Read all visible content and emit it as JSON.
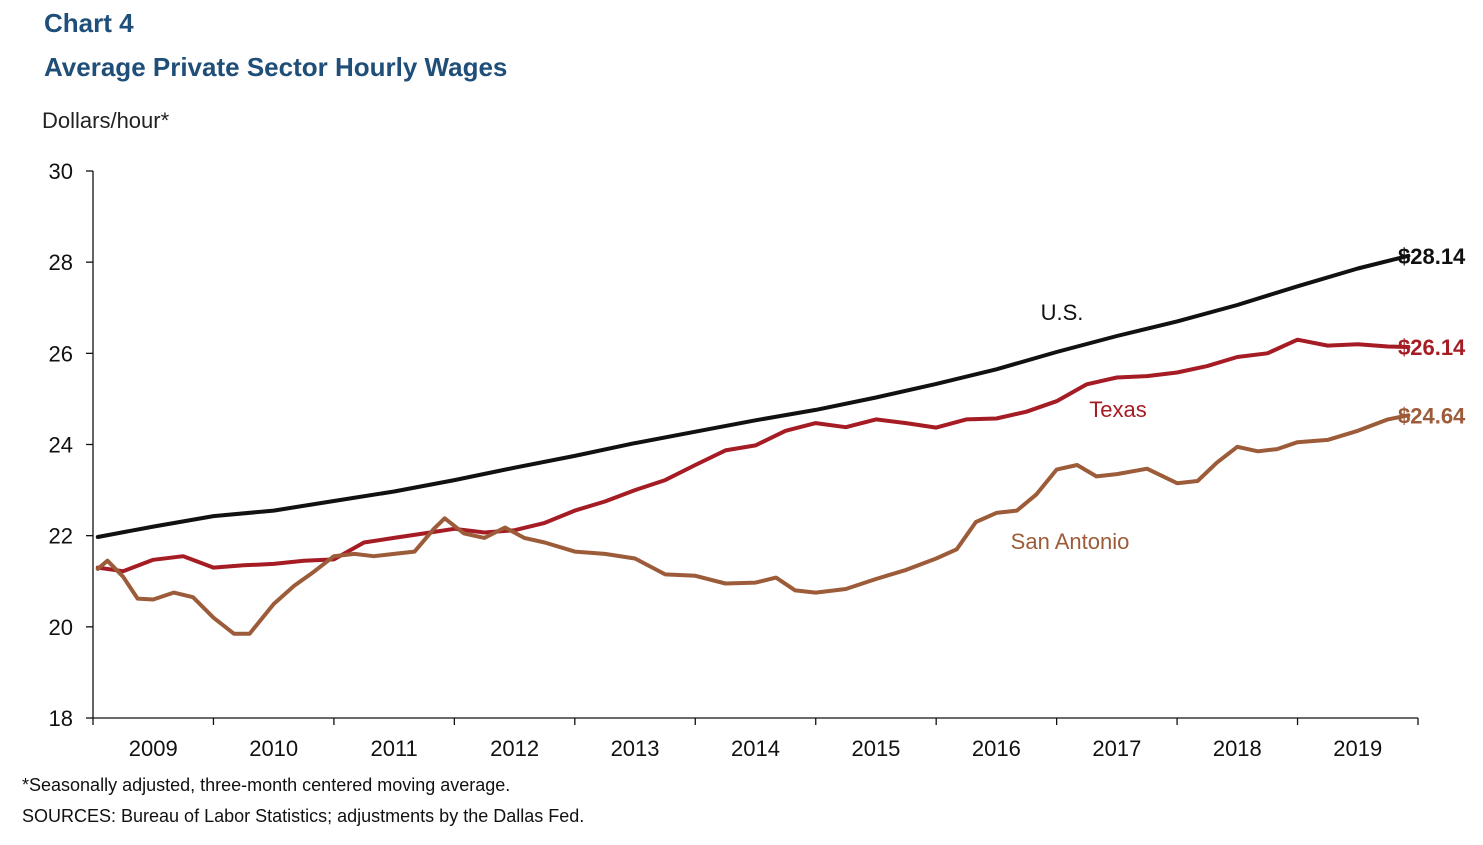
{
  "header": {
    "chart_label": "Chart 4",
    "title": "Average Private Sector Hourly Wages"
  },
  "footnotes": {
    "note": "*Seasonally adjusted, three-month centered moving average.",
    "sources": "SOURCES: Bureau of Labor Statistics; adjustments by the Dallas Fed."
  },
  "chart_data": {
    "type": "line",
    "title": "Average Private Sector Hourly Wages",
    "ylabel": "Dollars/hour*",
    "xlabel": "",
    "ylim": [
      18,
      30
    ],
    "yticks": [
      18,
      20,
      22,
      24,
      26,
      28,
      30
    ],
    "ytick_labels": [
      "18",
      "20",
      "22",
      "24",
      "26",
      "28",
      "30"
    ],
    "xlim": [
      2008.5,
      2019.5
    ],
    "xticks": [
      2009,
      2010,
      2011,
      2012,
      2013,
      2014,
      2015,
      2016,
      2017,
      2018,
      2019
    ],
    "xtick_labels": [
      "2009",
      "2010",
      "2011",
      "2012",
      "2013",
      "2014",
      "2015",
      "2016",
      "2017",
      "2018",
      "2019"
    ],
    "grid": false,
    "series": [
      {
        "name": "U.S.",
        "color": "#111111",
        "end_label": "$28.14",
        "end_label_color": "#111111",
        "points": [
          [
            2008.54,
            21.97
          ],
          [
            2009.0,
            22.2
          ],
          [
            2009.5,
            22.43
          ],
          [
            2010.0,
            22.55
          ],
          [
            2010.5,
            22.76
          ],
          [
            2011.0,
            22.97
          ],
          [
            2011.5,
            23.22
          ],
          [
            2012.0,
            23.49
          ],
          [
            2012.5,
            23.75
          ],
          [
            2013.0,
            24.03
          ],
          [
            2013.5,
            24.28
          ],
          [
            2014.0,
            24.53
          ],
          [
            2014.5,
            24.76
          ],
          [
            2015.0,
            25.03
          ],
          [
            2015.5,
            25.33
          ],
          [
            2016.0,
            25.65
          ],
          [
            2016.5,
            26.03
          ],
          [
            2017.0,
            26.38
          ],
          [
            2017.5,
            26.7
          ],
          [
            2018.0,
            27.06
          ],
          [
            2018.5,
            27.47
          ],
          [
            2019.0,
            27.86
          ],
          [
            2019.42,
            28.14
          ]
        ]
      },
      {
        "name": "Texas",
        "color": "#a51c24",
        "end_label": "$26.14",
        "end_label_color": "#a51c24",
        "points": [
          [
            2008.54,
            21.3
          ],
          [
            2008.75,
            21.22
          ],
          [
            2009.0,
            21.47
          ],
          [
            2009.25,
            21.55
          ],
          [
            2009.5,
            21.3
          ],
          [
            2009.75,
            21.35
          ],
          [
            2010.0,
            21.38
          ],
          [
            2010.25,
            21.45
          ],
          [
            2010.5,
            21.48
          ],
          [
            2010.75,
            21.85
          ],
          [
            2011.0,
            21.95
          ],
          [
            2011.25,
            22.05
          ],
          [
            2011.5,
            22.15
          ],
          [
            2011.75,
            22.07
          ],
          [
            2012.0,
            22.12
          ],
          [
            2012.25,
            22.28
          ],
          [
            2012.5,
            22.55
          ],
          [
            2012.75,
            22.75
          ],
          [
            2013.0,
            23.0
          ],
          [
            2013.25,
            23.22
          ],
          [
            2013.5,
            23.55
          ],
          [
            2013.75,
            23.87
          ],
          [
            2014.0,
            23.98
          ],
          [
            2014.25,
            24.3
          ],
          [
            2014.5,
            24.47
          ],
          [
            2014.75,
            24.38
          ],
          [
            2015.0,
            24.55
          ],
          [
            2015.25,
            24.47
          ],
          [
            2015.5,
            24.37
          ],
          [
            2015.75,
            24.55
          ],
          [
            2016.0,
            24.57
          ],
          [
            2016.25,
            24.72
          ],
          [
            2016.5,
            24.95
          ],
          [
            2016.75,
            25.32
          ],
          [
            2017.0,
            25.47
          ],
          [
            2017.25,
            25.5
          ],
          [
            2017.5,
            25.58
          ],
          [
            2017.75,
            25.72
          ],
          [
            2018.0,
            25.92
          ],
          [
            2018.25,
            26.0
          ],
          [
            2018.5,
            26.3
          ],
          [
            2018.75,
            26.17
          ],
          [
            2019.0,
            26.2
          ],
          [
            2019.25,
            26.15
          ],
          [
            2019.42,
            26.14
          ]
        ]
      },
      {
        "name": "San Antonio",
        "color": "#9c5b39",
        "end_label": "$24.64",
        "end_label_color": "#9c5b39",
        "points": [
          [
            2008.54,
            21.27
          ],
          [
            2008.62,
            21.45
          ],
          [
            2008.75,
            21.1
          ],
          [
            2008.87,
            20.62
          ],
          [
            2009.0,
            20.6
          ],
          [
            2009.17,
            20.75
          ],
          [
            2009.33,
            20.65
          ],
          [
            2009.5,
            20.2
          ],
          [
            2009.67,
            19.85
          ],
          [
            2009.8,
            19.85
          ],
          [
            2010.0,
            20.5
          ],
          [
            2010.17,
            20.9
          ],
          [
            2010.33,
            21.2
          ],
          [
            2010.5,
            21.55
          ],
          [
            2010.67,
            21.6
          ],
          [
            2010.83,
            21.55
          ],
          [
            2011.0,
            21.6
          ],
          [
            2011.17,
            21.65
          ],
          [
            2011.33,
            22.15
          ],
          [
            2011.42,
            22.38
          ],
          [
            2011.58,
            22.05
          ],
          [
            2011.75,
            21.95
          ],
          [
            2011.92,
            22.18
          ],
          [
            2012.08,
            21.95
          ],
          [
            2012.25,
            21.85
          ],
          [
            2012.5,
            21.65
          ],
          [
            2012.75,
            21.6
          ],
          [
            2013.0,
            21.5
          ],
          [
            2013.25,
            21.15
          ],
          [
            2013.5,
            21.12
          ],
          [
            2013.75,
            20.95
          ],
          [
            2014.0,
            20.97
          ],
          [
            2014.17,
            21.08
          ],
          [
            2014.33,
            20.8
          ],
          [
            2014.5,
            20.75
          ],
          [
            2014.75,
            20.83
          ],
          [
            2015.0,
            21.05
          ],
          [
            2015.25,
            21.25
          ],
          [
            2015.5,
            21.5
          ],
          [
            2015.67,
            21.7
          ],
          [
            2015.83,
            22.3
          ],
          [
            2016.0,
            22.5
          ],
          [
            2016.17,
            22.55
          ],
          [
            2016.33,
            22.9
          ],
          [
            2016.5,
            23.45
          ],
          [
            2016.67,
            23.55
          ],
          [
            2016.83,
            23.3
          ],
          [
            2017.0,
            23.35
          ],
          [
            2017.25,
            23.47
          ],
          [
            2017.5,
            23.15
          ],
          [
            2017.67,
            23.2
          ],
          [
            2017.83,
            23.6
          ],
          [
            2018.0,
            23.95
          ],
          [
            2018.17,
            23.85
          ],
          [
            2018.33,
            23.9
          ],
          [
            2018.5,
            24.05
          ],
          [
            2018.75,
            24.1
          ],
          [
            2019.0,
            24.3
          ],
          [
            2019.25,
            24.55
          ],
          [
            2019.42,
            24.64
          ]
        ]
      }
    ]
  }
}
